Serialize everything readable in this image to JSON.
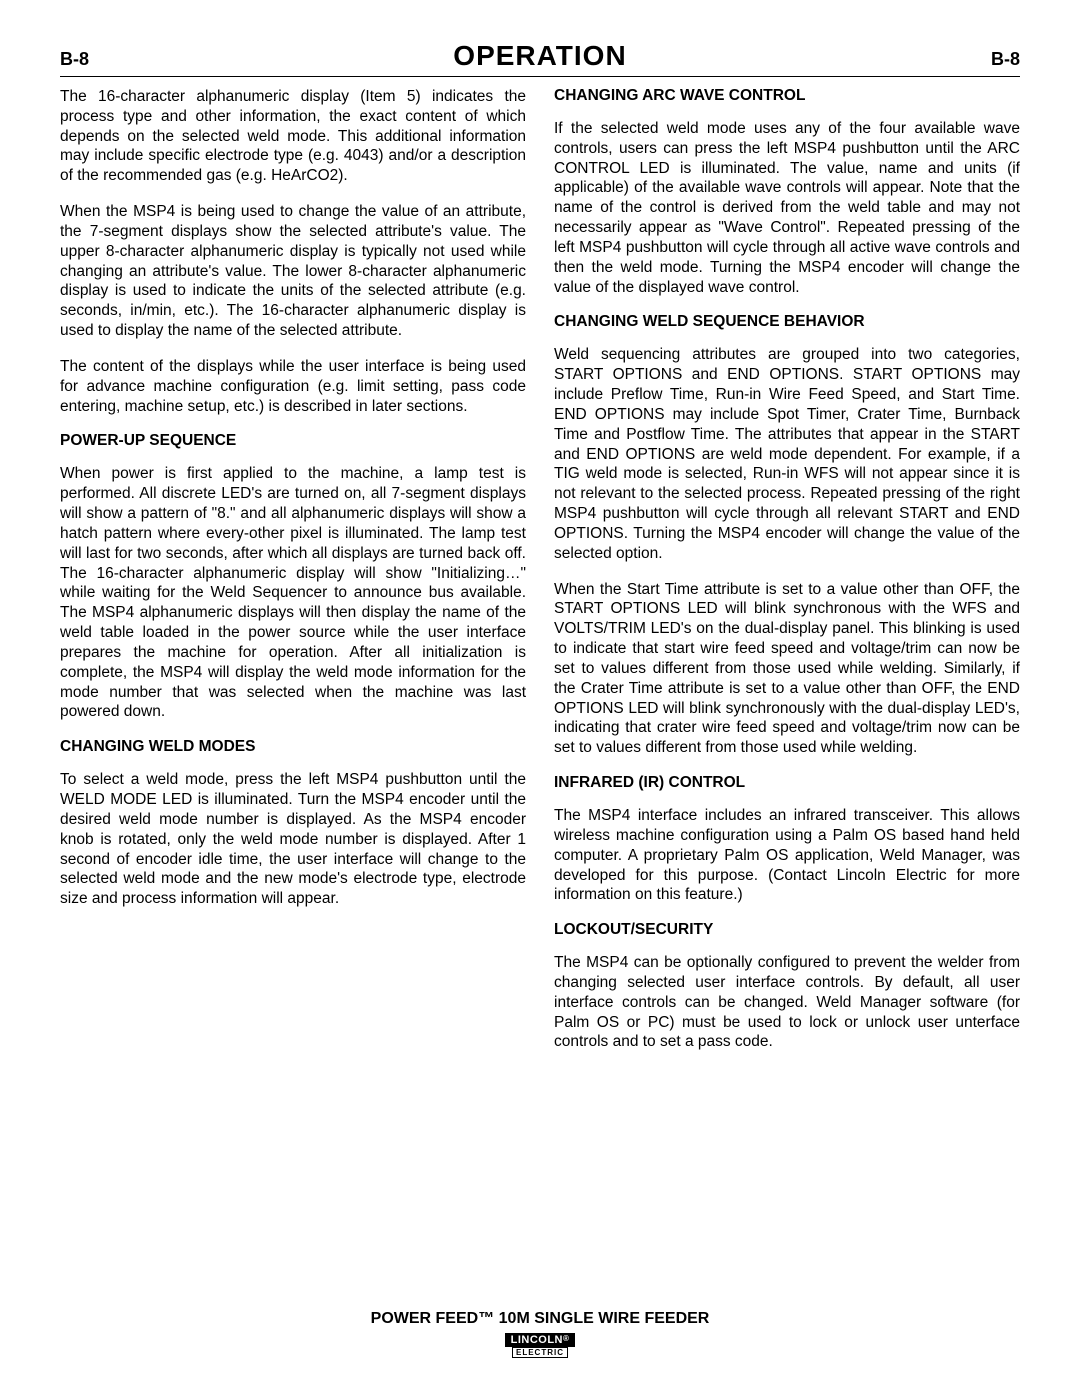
{
  "header": {
    "left_label": "B-8",
    "title": "OPERATION",
    "right_label": "B-8"
  },
  "left_column": {
    "para1": "The 16-character alphanumeric display (Item 5) indicates the process type and other information, the exact content of which depends on the selected weld mode. This additional information may include specific electrode type (e.g. 4043) and/or a description of the recommended gas (e.g. HeArCO2).",
    "para2": "When the MSP4 is being used to change the value of an attribute, the 7-segment displays show the selected attribute's value. The upper 8-character alphanumeric display is typically not used while changing an attribute's value. The lower 8-character alphanumeric display is used to indicate the units of the selected attribute (e.g. seconds, in/min, etc.). The 16-character alphanumeric display is used to display the name of the selected attribute.",
    "para3": "The content of the displays while the user interface is being used for advance machine configuration (e.g. limit setting, pass code entering, machine setup, etc.) is described in later sections.",
    "head1": "POWER-UP SEQUENCE",
    "para4": "When power is first applied to the machine, a lamp test is performed.  All discrete LED's are turned on, all 7-segment displays will show a pattern of \"8.\" and all alphanumeric displays will show a hatch pattern where every-other pixel is illuminated.  The lamp test will last for two seconds, after which all displays are turned back off.  The 16-character alphanumeric display will show \"Initializing…\" while waiting for the Weld Sequencer to announce bus available.  The MSP4 alphanumeric displays will then display the name of the weld table loaded in the power source while the user interface prepares the machine for operation.  After all initialization is complete, the MSP4 will display the weld mode information for the mode number that was selected when the machine was last powered down.",
    "head2": "CHANGING WELD MODES",
    "para5": "To select a weld mode, press the left MSP4 pushbutton until the WELD MODE LED is illuminated. Turn the MSP4 encoder until the desired weld mode number is displayed. As the MSP4 encoder knob is rotated, only the weld mode number is displayed. After 1 second of encoder idle time, the user interface will change to the selected weld mode and the new mode's electrode type, electrode size and process information will appear."
  },
  "right_column": {
    "head1": "CHANGING ARC WAVE CONTROL",
    "para1": "If the selected weld mode uses any of the four available wave controls, users can press the left MSP4 pushbutton until the ARC CONTROL LED is illuminated. The value, name and units (if applicable) of the available wave controls will appear.  Note that the name of the control is derived from the weld table and may not necessarily appear as \"Wave Control\".  Repeated pressing of the left MSP4 pushbutton will cycle through all active wave controls and then the weld mode. Turning the MSP4 encoder will change the value of the displayed wave control.",
    "head2": "CHANGING WELD SEQUENCE BEHAVIOR",
    "para2": "Weld sequencing attributes are grouped into two categories, START OPTIONS and END OPTIONS.  START OPTIONS may include Preflow Time, Run-in Wire Feed Speed, and Start Time. END OPTIONS may include Spot Timer, Crater Time, Burnback Time and Postflow Time. The attributes that appear in the START and END OPTIONS are weld mode dependent. For example, if a TIG weld mode is selected, Run-in WFS will not appear since it is not relevant to the selected process. Repeated pressing of the right MSP4 pushbutton will cycle through all relevant START and END OPTIONS. Turning the MSP4 encoder will change the value of the selected option.",
    "para3": "When the Start Time attribute is set to a value other than OFF, the START OPTIONS LED will blink synchronous with the WFS and VOLTS/TRIM LED's on the dual-display panel. This blinking is used to indicate that start wire feed speed and voltage/trim can now be set to values different from those used while welding.  Similarly, if the Crater Time attribute is set to a value other than OFF, the END OPTIONS LED will blink synchronously with the dual-display LED's, indicating that crater wire feed speed and voltage/trim now can be set to values different from those used while welding.",
    "head3": "INFRARED (IR) CONTROL",
    "para4": "The MSP4 interface includes an infrared transceiver.  This allows wireless machine configuration using a Palm OS based hand held computer. A proprietary Palm OS application, Weld Manager, was developed for this purpose. (Contact Lincoln Electric for more information on this feature.)",
    "head4": "LOCKOUT/SECURITY",
    "para5": "The MSP4 can be optionally configured to prevent the welder from changing selected user interface controls.  By default, all user interface controls can be changed.  Weld Manager software (for Palm OS or PC) must be used to lock or unlock user unterface controls and to set a pass code."
  },
  "footer": {
    "product_name": "POWER FEED™ 10M SINGLE WIRE FEEDER",
    "logo_top": "LINCOLN",
    "logo_reg": "®",
    "logo_bottom": "ELECTRIC"
  }
}
